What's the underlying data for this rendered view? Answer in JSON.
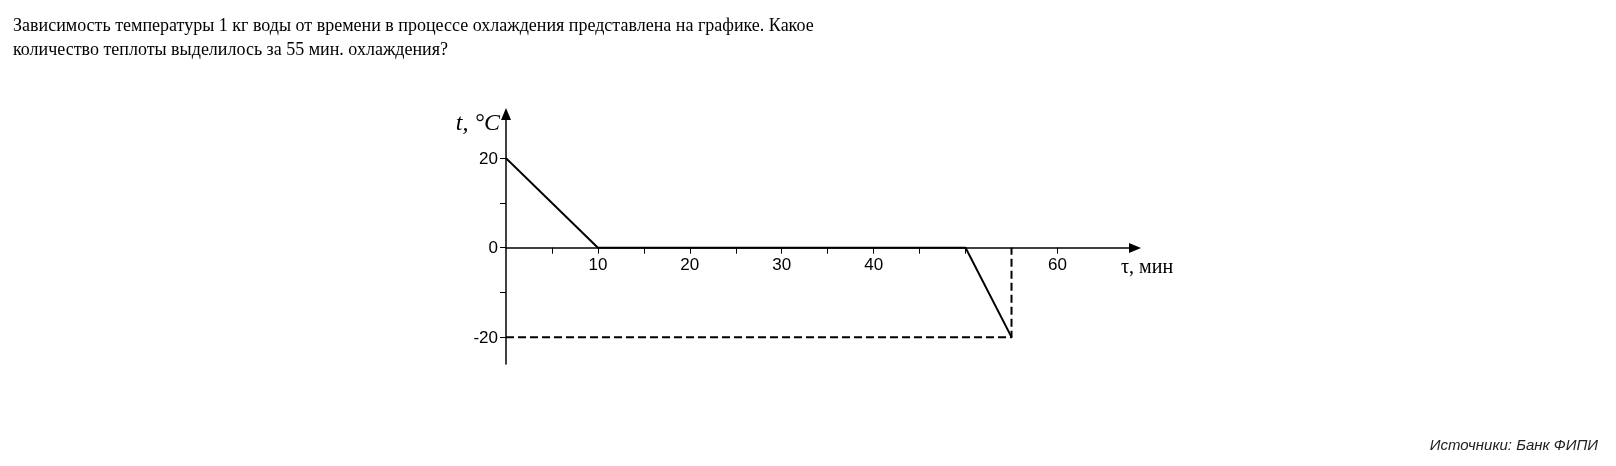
{
  "chart_data": {
    "type": "line",
    "title": "Зависимость температуры 1 кг воды от времени в процессе охлаждения представлена на графике. Какое количество теплоты выделилось за 55 мин. охлаждения?",
    "xlabel": "τ, мин",
    "ylabel": "t, °C",
    "series": [
      {
        "x": [
          0,
          10,
          50,
          55
        ],
        "values": [
          20,
          0,
          0,
          -20
        ],
        "color": "#000000",
        "line_style": "solid"
      },
      {
        "x": [
          0,
          55,
          55
        ],
        "values": [
          -20,
          -20,
          0
        ],
        "color": "#000000",
        "line_style": "dashed"
      }
    ],
    "xlim": [
      0,
      68
    ],
    "ylim": [
      -26,
      29
    ],
    "xticks": [
      {
        "value": 5,
        "label": null
      },
      10,
      {
        "value": 15,
        "label": null
      },
      20,
      {
        "value": 25,
        "label": null
      },
      30,
      {
        "value": 35,
        "label": null
      },
      40,
      {
        "value": 45,
        "label": null
      },
      {
        "value": 50,
        "label": null
      },
      {
        "value": 55,
        "label": null
      },
      60
    ],
    "yticks": [
      -20,
      {
        "value": -10,
        "label": null
      },
      0,
      {
        "value": 10,
        "label": null
      },
      20
    ],
    "grid": false,
    "marker": "none",
    "annotations": [
      "Источники: Банк ФИПИ"
    ]
  }
}
